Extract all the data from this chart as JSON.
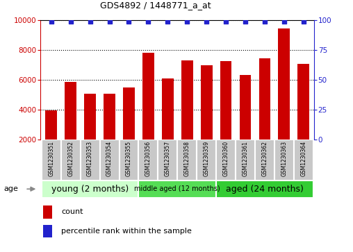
{
  "title": "GDS4892 / 1448771_a_at",
  "samples": [
    "GSM1230351",
    "GSM1230352",
    "GSM1230353",
    "GSM1230354",
    "GSM1230355",
    "GSM1230356",
    "GSM1230357",
    "GSM1230358",
    "GSM1230359",
    "GSM1230360",
    "GSM1230361",
    "GSM1230362",
    "GSM1230363",
    "GSM1230364"
  ],
  "counts": [
    3950,
    5880,
    5100,
    5070,
    5480,
    7800,
    6100,
    7330,
    6980,
    7280,
    6350,
    7450,
    9450,
    7100
  ],
  "percentile_ranks": [
    99,
    99,
    99,
    99,
    99,
    99,
    99,
    99,
    99,
    99,
    99,
    99,
    99,
    99
  ],
  "bar_color": "#cc0000",
  "dot_color": "#2222cc",
  "ylim_left": [
    2000,
    10000
  ],
  "ylim_right": [
    0,
    100
  ],
  "yticks_left": [
    2000,
    4000,
    6000,
    8000,
    10000
  ],
  "yticks_right": [
    0,
    25,
    50,
    75,
    100
  ],
  "groups": [
    {
      "label": "young (2 months)",
      "start": 0,
      "end": 5,
      "color": "#ccffcc",
      "fontsize": 9
    },
    {
      "label": "middle aged (12 months)",
      "start": 5,
      "end": 9,
      "color": "#55dd55",
      "fontsize": 7
    },
    {
      "label": "aged (24 months)",
      "start": 9,
      "end": 14,
      "color": "#33cc33",
      "fontsize": 9
    }
  ],
  "age_label": "age",
  "legend_count_label": "count",
  "legend_percentile_label": "percentile rank within the sample",
  "background_color": "#ffffff",
  "grid_color": "#000000",
  "axis_left_color": "#cc0000",
  "axis_right_color": "#2222cc",
  "sample_box_color": "#c8c8c8",
  "sample_box_edge_color": "#ffffff",
  "bar_width": 0.6
}
